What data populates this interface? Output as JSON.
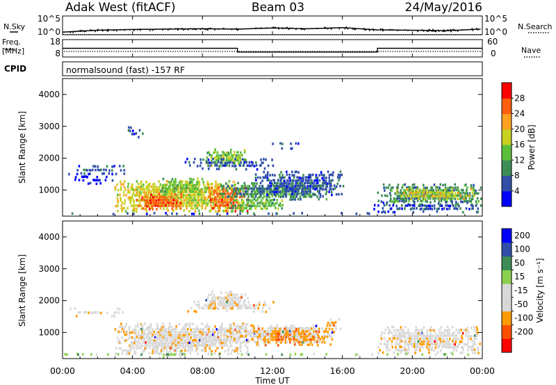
{
  "header": {
    "station": "Adak West (fitACF)",
    "beam": "Beam 03",
    "date": "24/May/2016"
  },
  "side_labels": {
    "nsky": "N.Sky",
    "nsearch": "N.Search",
    "freq_line1": "Freq.",
    "freq_line2": "[MHz]",
    "nave": "Nave",
    "cpid": "CPID"
  },
  "cpid_text": "normalsound (fast) -157 RF",
  "colors": {
    "power": [
      "#0000ff",
      "#2f4fa8",
      "#3d8c55",
      "#5cbf3a",
      "#c8d020",
      "#ffa020",
      "#ff6010",
      "#ff0000"
    ],
    "velocity": [
      "#ff0000",
      "#ff5000",
      "#ff9a00",
      "#d8d8d8",
      "#d8d8d8",
      "#8cd050",
      "#3d8c55",
      "#2f4fa8",
      "#0000ff"
    ],
    "ground": "#bdbdbd"
  },
  "chart_data": [
    {
      "type": "line",
      "name": "N.Sky / N.Search",
      "y_tick_labels": [
        "10^5",
        "10^0"
      ],
      "right_tick_labels": [
        "10^5",
        "10^0"
      ],
      "series": [
        {
          "name": "N.Sky",
          "style": "solid",
          "x": [
            0,
            2,
            4,
            6,
            8,
            10,
            12,
            14,
            16,
            18,
            20,
            22,
            23.9
          ],
          "values": [
            0.7,
            1.2,
            1.4,
            1.5,
            1.6,
            1.5,
            1.8,
            1.6,
            1.9,
            1.3,
            1.2,
            1.1,
            1.5
          ]
        },
        {
          "name": "N.Search",
          "style": "dotted",
          "x": [
            0,
            24
          ],
          "values": [
            0.1,
            0.1
          ]
        }
      ]
    },
    {
      "type": "line",
      "name": "Frequency / Nave",
      "left_ticks": [
        "18",
        "8"
      ],
      "right_ticks": [
        "60",
        "0"
      ],
      "series": [
        {
          "name": "Freq.",
          "unit": "MHz",
          "x": [
            0,
            10,
            10,
            18,
            18,
            24
          ],
          "values": [
            13,
            13,
            10,
            10,
            13,
            13
          ]
        },
        {
          "name": "Nave",
          "style": "dotted",
          "x": [
            0,
            24
          ],
          "values": [
            9.5,
            9.5
          ]
        }
      ]
    },
    {
      "type": "heatmap",
      "name": "power",
      "xlabel": "",
      "ylabel": "Slant Range [km]",
      "xlim": [
        0,
        24
      ],
      "ylim": [
        180,
        4500
      ],
      "yticks": [
        1000,
        2000,
        3000,
        4000
      ],
      "colorbar": {
        "label": "Power [dB]",
        "ticks": [
          4,
          8,
          12,
          16,
          20,
          24,
          28
        ],
        "vmin": 0,
        "vmax": 32
      },
      "patches": [
        {
          "t0": 3.0,
          "t1": 9.8,
          "r0": 380,
          "r1": 1300,
          "level": 4,
          "density": 0.85
        },
        {
          "t0": 4.2,
          "t1": 6.8,
          "r0": 450,
          "r1": 900,
          "level": 6,
          "density": 0.85
        },
        {
          "t0": 5.5,
          "t1": 8.2,
          "r0": 900,
          "r1": 1380,
          "level": 3,
          "density": 0.8
        },
        {
          "t0": 8.3,
          "t1": 10.5,
          "r0": 380,
          "r1": 1100,
          "level": 6,
          "density": 0.8
        },
        {
          "t0": 9.5,
          "t1": 12.5,
          "r0": 380,
          "r1": 800,
          "level": 3,
          "density": 0.7
        },
        {
          "t0": 9.0,
          "t1": 15.0,
          "r0": 750,
          "r1": 1250,
          "level": 2,
          "density": 0.8
        },
        {
          "t0": 11.0,
          "t1": 16.0,
          "r0": 900,
          "r1": 1600,
          "level": 1,
          "density": 0.75
        },
        {
          "t0": 8.2,
          "t1": 10.5,
          "r0": 1800,
          "r1": 2300,
          "level": 3,
          "density": 0.75
        },
        {
          "t0": 7.0,
          "t1": 12.0,
          "r0": 1700,
          "r1": 2000,
          "level": 1,
          "density": 0.45
        },
        {
          "t0": 0.3,
          "t1": 3.5,
          "r0": 1550,
          "r1": 1780,
          "level": 1,
          "density": 0.55
        },
        {
          "t0": 0.3,
          "t1": 3.0,
          "r0": 1250,
          "r1": 1450,
          "level": 0,
          "density": 0.35
        },
        {
          "t0": 3.5,
          "t1": 4.5,
          "r0": 2700,
          "r1": 3000,
          "level": 1,
          "density": 0.45
        },
        {
          "t0": 12.0,
          "t1": 13.5,
          "r0": 2350,
          "r1": 2500,
          "level": 1,
          "density": 0.5
        },
        {
          "t0": 18.0,
          "t1": 23.9,
          "r0": 600,
          "r1": 1200,
          "level": 2,
          "density": 0.8
        },
        {
          "t0": 19.0,
          "t1": 23.5,
          "r0": 750,
          "r1": 1050,
          "level": 4,
          "density": 0.7
        },
        {
          "t0": 17.8,
          "t1": 23.9,
          "r0": 350,
          "r1": 650,
          "level": 1,
          "density": 0.55
        },
        {
          "t0": 0.0,
          "t1": 24.0,
          "r0": 180,
          "r1": 300,
          "level": 1,
          "density": 0.35
        }
      ]
    },
    {
      "type": "heatmap",
      "name": "velocity",
      "xlabel": "Time UT",
      "ylabel": "Slant Range [km]",
      "xlim": [
        0,
        24
      ],
      "ylim": [
        180,
        4500
      ],
      "xticks": [
        "00:00",
        "04:00",
        "08:00",
        "12:00",
        "16:00",
        "20:00",
        "00:00"
      ],
      "yticks": [
        1000,
        2000,
        3000,
        4000
      ],
      "colorbar": {
        "label": "Velocity [m s⁻¹]",
        "ticks": [
          "200",
          "100",
          "50",
          "15",
          "-15",
          "-50",
          "-100",
          "-200"
        ]
      },
      "patches": [
        {
          "t0": 3.0,
          "t1": 10.5,
          "r0": 380,
          "r1": 1300,
          "level": 3,
          "density": 0.85
        },
        {
          "t0": 9.0,
          "t1": 15.0,
          "r0": 750,
          "r1": 1250,
          "level": 3,
          "density": 0.75
        },
        {
          "t0": 11.0,
          "t1": 15.5,
          "r0": 650,
          "r1": 1150,
          "level": 2,
          "density": 0.7
        },
        {
          "t0": 15.0,
          "t1": 15.8,
          "r0": 1050,
          "r1": 1450,
          "level": 2,
          "density": 0.7
        },
        {
          "t0": 8.2,
          "t1": 10.5,
          "r0": 1800,
          "r1": 2300,
          "level": 3,
          "density": 0.75
        },
        {
          "t0": 7.0,
          "t1": 12.0,
          "r0": 1700,
          "r1": 2000,
          "level": 3,
          "density": 0.45
        },
        {
          "t0": 0.3,
          "t1": 3.5,
          "r0": 1550,
          "r1": 1780,
          "level": 3,
          "density": 0.5
        },
        {
          "t0": 18.0,
          "t1": 23.9,
          "r0": 400,
          "r1": 1200,
          "level": 3,
          "density": 0.75
        },
        {
          "t0": 0.0,
          "t1": 24.0,
          "r0": 180,
          "r1": 350,
          "level": 5,
          "density": 0.35
        },
        {
          "t0": 5.5,
          "t1": 7.0,
          "r0": 250,
          "r1": 450,
          "level": 5,
          "density": 0.6
        }
      ]
    }
  ]
}
